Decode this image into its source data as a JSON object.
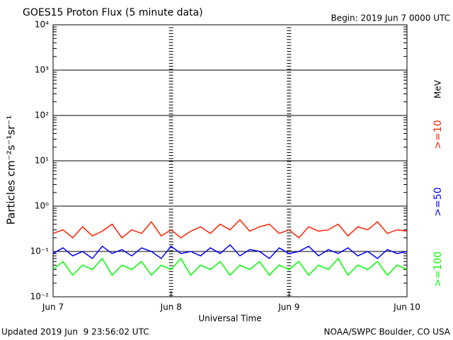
{
  "chart_data": {
    "type": "line",
    "title": "GOES15 Proton Flux (5 minute data)",
    "subtitle": "Begin: 2019 Jun 7 0000 UTC",
    "x_label": "Universal Time",
    "y_label": "Particles cm⁻²s⁻¹sr⁻¹",
    "legend_unit": "MeV",
    "footer_left": "Updated 2019 Jun  9 23:56:02 UTC",
    "footer_right": "NOAA/SWPC Boulder, CO USA",
    "log_scale": true,
    "grid": true,
    "categories": [
      "Jun 7",
      null,
      null,
      null,
      null,
      null,
      null,
      null,
      null,
      null,
      null,
      null,
      "Jun 8",
      null,
      null,
      null,
      null,
      null,
      null,
      null,
      null,
      null,
      null,
      null,
      "Jun 9",
      null,
      null,
      null,
      null,
      null,
      null,
      null,
      null,
      null,
      null,
      null,
      "Jun 10"
    ],
    "ylim": [
      0.01,
      10000
    ],
    "yticks": [
      {
        "value": 0.01,
        "label": "10⁻²"
      },
      {
        "value": 0.1,
        "label": "10⁻¹"
      },
      {
        "value": 1,
        "label": "10⁰"
      },
      {
        "value": 10,
        "label": "10¹"
      },
      {
        "value": 100,
        "label": "10²"
      },
      {
        "value": 1000,
        "label": "10³"
      },
      {
        "value": 10000,
        "label": "10⁴"
      }
    ],
    "series": [
      {
        "name": ">=10",
        "color": "#ff2000",
        "values": [
          0.25,
          0.3,
          0.2,
          0.35,
          0.22,
          0.28,
          0.4,
          0.2,
          0.3,
          0.25,
          0.45,
          0.22,
          0.3,
          0.2,
          0.28,
          0.35,
          0.25,
          0.4,
          0.3,
          0.5,
          0.28,
          0.35,
          0.4,
          0.25,
          0.3,
          0.2,
          0.35,
          0.28,
          0.3,
          0.4,
          0.22,
          0.35,
          0.3,
          0.45,
          0.25,
          0.3,
          0.28
        ]
      },
      {
        "name": ">=50",
        "color": "#0000ff",
        "values": [
          0.09,
          0.12,
          0.08,
          0.1,
          0.07,
          0.13,
          0.09,
          0.11,
          0.08,
          0.12,
          0.1,
          0.07,
          0.13,
          0.09,
          0.1,
          0.08,
          0.12,
          0.09,
          0.14,
          0.08,
          0.11,
          0.1,
          0.07,
          0.12,
          0.09,
          0.1,
          0.13,
          0.08,
          0.11,
          0.09,
          0.12,
          0.08,
          0.1,
          0.07,
          0.11,
          0.09,
          0.1
        ]
      },
      {
        "name": ">=100",
        "color": "#00ff00",
        "values": [
          0.04,
          0.06,
          0.03,
          0.05,
          0.04,
          0.07,
          0.03,
          0.05,
          0.04,
          0.06,
          0.03,
          0.05,
          0.04,
          0.07,
          0.03,
          0.05,
          0.04,
          0.06,
          0.03,
          0.05,
          0.04,
          0.06,
          0.03,
          0.05,
          0.04,
          0.06,
          0.03,
          0.05,
          0.04,
          0.07,
          0.03,
          0.05,
          0.04,
          0.06,
          0.03,
          0.05,
          0.04
        ]
      }
    ]
  }
}
